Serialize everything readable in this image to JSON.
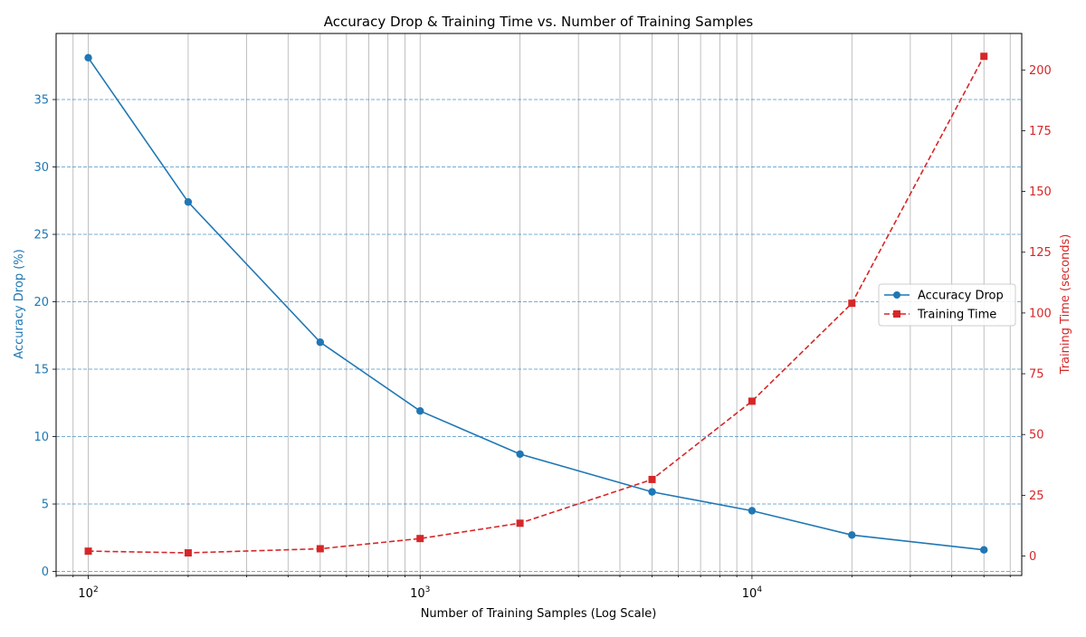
{
  "chart_data": {
    "type": "line",
    "title": "Accuracy Drop & Training Time vs. Number of Training Samples",
    "xlabel": "Number of Training Samples (Log Scale)",
    "xscale": "log",
    "xlim": [
      80,
      65000
    ],
    "x": [
      100,
      200,
      500,
      1000,
      2000,
      5000,
      10000,
      20000,
      50000
    ],
    "x_tick_labels": [
      {
        "value": 100,
        "base": "10",
        "exp": "2"
      },
      {
        "value": 1000,
        "base": "10",
        "exp": "3"
      },
      {
        "value": 10000,
        "base": "10",
        "exp": "4"
      }
    ],
    "left_axis": {
      "label": "Accuracy Drop (%)",
      "color": "#1f77b4",
      "ylim": [
        -0.3,
        39.9
      ],
      "ticks": [
        0,
        5,
        10,
        15,
        20,
        25,
        30,
        35
      ],
      "tick_labels": [
        "0",
        "5",
        "10",
        "15",
        "20",
        "25",
        "30",
        "35"
      ]
    },
    "right_axis": {
      "label": "Training Time (seconds)",
      "color": "#d62728",
      "ylim": [
        -8,
        215
      ],
      "ticks": [
        0,
        25,
        50,
        75,
        100,
        125,
        150,
        175,
        200
      ],
      "tick_labels": [
        "0",
        "25",
        "50",
        "75",
        "100",
        "125",
        "150",
        "175",
        "200"
      ]
    },
    "series": [
      {
        "name": "Accuracy Drop",
        "axis": "left",
        "color": "#1f77b4",
        "linestyle": "solid",
        "marker": "circle",
        "values": [
          38.1,
          27.4,
          17.0,
          11.9,
          8.7,
          5.9,
          4.5,
          2.7,
          1.6
        ]
      },
      {
        "name": "Training Time",
        "axis": "right",
        "color": "#d62728",
        "linestyle": "dashed",
        "marker": "square",
        "values": [
          2.0,
          1.3,
          3.0,
          7.2,
          13.5,
          31.5,
          63.7,
          104.0,
          205.6
        ]
      }
    ],
    "grid": {
      "x": "major and minor (log)",
      "y": "dashed, left axis major"
    },
    "legend": {
      "position": "center-right",
      "entries": [
        "Accuracy Drop",
        "Training Time"
      ]
    }
  }
}
